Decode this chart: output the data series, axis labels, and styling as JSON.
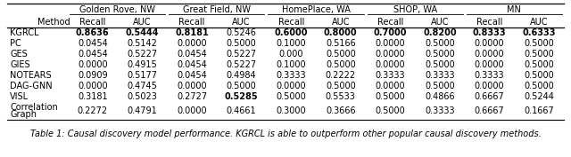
{
  "title": "Table 1: Causal discovery model performance. KGRCL is able to outperform other popular causal discovery methods.",
  "col_groups": [
    {
      "label": "Golden Rove, NW",
      "span": 2
    },
    {
      "label": "Great Field, NW",
      "span": 2
    },
    {
      "label": "HomePlace, WA",
      "span": 2
    },
    {
      "label": "SHOP, WA",
      "span": 2
    },
    {
      "label": "MN",
      "span": 2
    }
  ],
  "sub_headers": [
    "Recall",
    "AUC",
    "Recall",
    "AUC",
    "Recall",
    "AUC",
    "Recall",
    "AUC",
    "Recall",
    "AUC"
  ],
  "methods": [
    "KGRCL",
    "PC",
    "GES",
    "GIES",
    "NOTEARS",
    "DAG-GNN",
    "VISL",
    "Correlation\nGraph"
  ],
  "data": [
    [
      "0.8636",
      "0.5444",
      "0.8181",
      "0.5246",
      "0.6000",
      "0.8000",
      "0.7000",
      "0.8200",
      "0.8333",
      "0.6333"
    ],
    [
      "0.0454",
      "0.5142",
      "0.0000",
      "0.5000",
      "0.1000",
      "0.5166",
      "0.0000",
      "0.5000",
      "0.0000",
      "0.5000"
    ],
    [
      "0.0454",
      "0.5227",
      "0.0454",
      "0.5227",
      "0.000",
      "0.5000",
      "0.0000",
      "0.5000",
      "0.0000",
      "0.5000"
    ],
    [
      "0.0000",
      "0.4915",
      "0.0454",
      "0.5227",
      "0.1000",
      "0.5000",
      "0.0000",
      "0.5000",
      "0.0000",
      "0.5000"
    ],
    [
      "0.0909",
      "0.5177",
      "0.0454",
      "0.4984",
      "0.3333",
      "0.2222",
      "0.3333",
      "0.3333",
      "0.3333",
      "0.5000"
    ],
    [
      "0.0000",
      "0.4745",
      "0.0000",
      "0.5000",
      "0.0000",
      "0.5000",
      "0.0000",
      "0.5000",
      "0.0000",
      "0.5000"
    ],
    [
      "0.3181",
      "0.5023",
      "0.2727",
      "0.5285",
      "0.5000",
      "0.5533",
      "0.5000",
      "0.4866",
      "0.6667",
      "0.5244"
    ],
    [
      "0.2272",
      "0.4791",
      "0.0000",
      "0.4661",
      "0.3000",
      "0.3666",
      "0.5000",
      "0.3333",
      "0.6667",
      "0.1667"
    ]
  ],
  "bold": [
    [
      true,
      true,
      true,
      false,
      true,
      true,
      true,
      true,
      true,
      true
    ],
    [
      false,
      false,
      false,
      false,
      false,
      false,
      false,
      false,
      false,
      false
    ],
    [
      false,
      false,
      false,
      false,
      false,
      false,
      false,
      false,
      false,
      false
    ],
    [
      false,
      false,
      false,
      false,
      false,
      false,
      false,
      false,
      false,
      false
    ],
    [
      false,
      false,
      false,
      false,
      false,
      false,
      false,
      false,
      false,
      false
    ],
    [
      false,
      false,
      false,
      false,
      false,
      false,
      false,
      false,
      false,
      false
    ],
    [
      false,
      false,
      false,
      true,
      false,
      false,
      false,
      false,
      false,
      false
    ],
    [
      false,
      false,
      false,
      false,
      false,
      false,
      false,
      false,
      false,
      false
    ]
  ],
  "background_color": "#ffffff",
  "font_size": 7.0,
  "header_font_size": 7.0,
  "title_font_size": 7.0,
  "font_family": "DejaVu Sans"
}
